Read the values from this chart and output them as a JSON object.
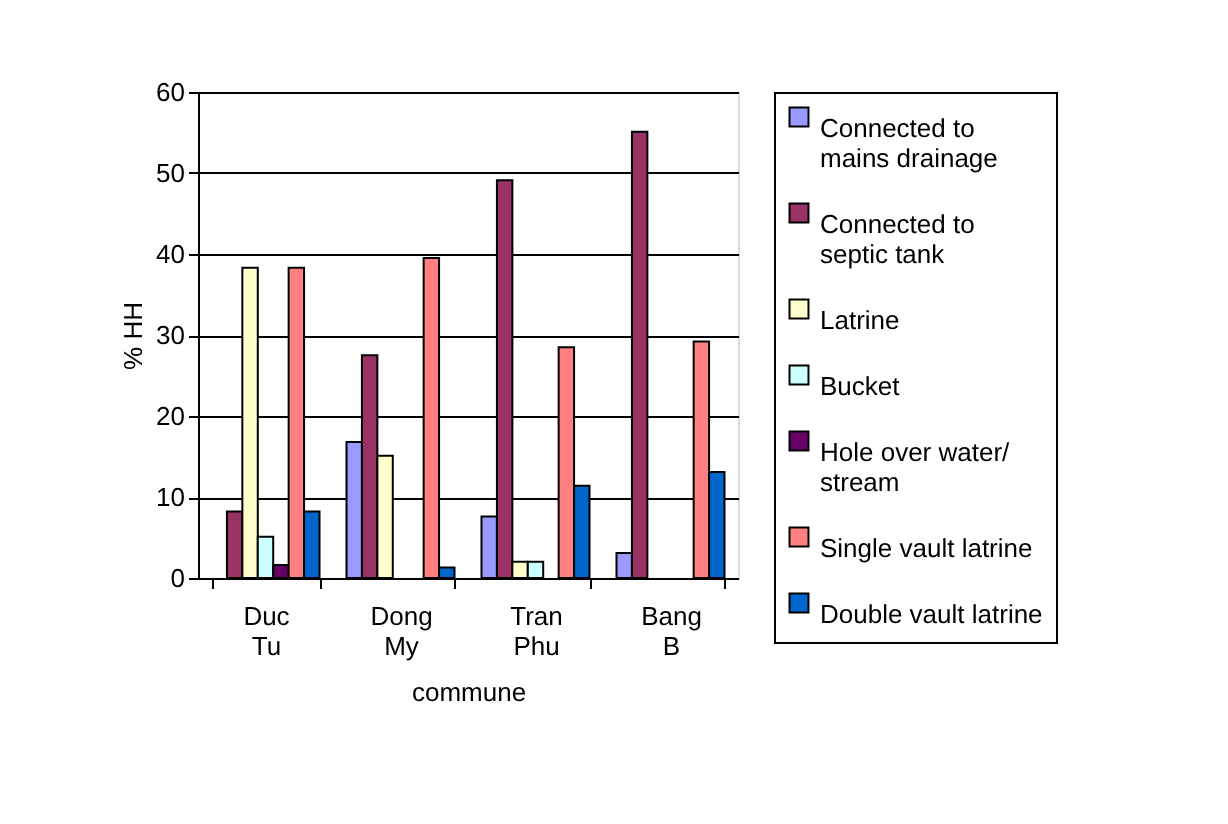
{
  "chart_data": {
    "type": "bar",
    "xlabel": "commune",
    "ylabel": "% HH",
    "categories": [
      "Duc Tu",
      "Dong My",
      "Tran Phu",
      "Bang B"
    ],
    "series": [
      {
        "name": "Connected to mains drainage",
        "color": "#9999ff",
        "values": [
          null,
          16.8,
          7.6,
          3.1
        ]
      },
      {
        "name": "Connected to septic tank",
        "color": "#993366",
        "values": [
          8.2,
          27.5,
          49.1,
          55.1
        ]
      },
      {
        "name": "Latrine",
        "color": "#ffffcc",
        "values": [
          38.3,
          15.1,
          2,
          null
        ]
      },
      {
        "name": "Bucket",
        "color": "#ccffff",
        "values": [
          5.1,
          null,
          2,
          null
        ]
      },
      {
        "name": "Hole over water/ stream",
        "color": "#660066",
        "values": [
          1.6,
          null,
          null,
          null
        ]
      },
      {
        "name": "Single vault latrine",
        "color": "#ff8080",
        "values": [
          38.3,
          39.5,
          28.5,
          29.2
        ]
      },
      {
        "name": "Double vault latrine",
        "color": "#0066cc",
        "values": [
          8.2,
          1.3,
          11.4,
          13.1
        ]
      }
    ],
    "ylim": [
      0,
      60
    ],
    "yticks": [
      0,
      10,
      20,
      30,
      40,
      50,
      60
    ],
    "grid": "y",
    "legend": "right"
  }
}
